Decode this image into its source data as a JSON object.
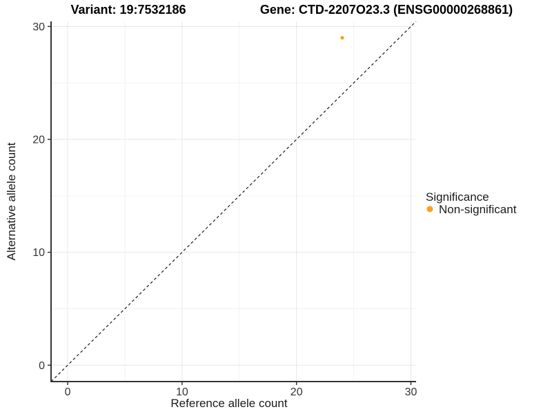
{
  "chart_data": {
    "type": "scatter",
    "title_left": "Variant: 19:7532186",
    "title_right": "Gene: CTD-2207O23.3 (ENSG00000268861)",
    "xlabel": "Reference allele count",
    "ylabel": "Alternative allele count",
    "xlim": [
      -1.45,
      30.45
    ],
    "ylim": [
      -1.45,
      30.45
    ],
    "x_ticks": [
      0,
      10,
      20,
      30
    ],
    "y_ticks": [
      0,
      10,
      20,
      30
    ],
    "x_minor_ticks": [
      5,
      15,
      25
    ],
    "y_minor_ticks": [
      5,
      15,
      25
    ],
    "grid": true,
    "identity_line": {
      "slope": 1,
      "intercept": 0,
      "style": "dashed"
    },
    "series": [
      {
        "name": "Non-significant",
        "color": "#F9A120",
        "points": [
          {
            "x": 24,
            "y": 29
          }
        ]
      }
    ],
    "legend": {
      "position": "right",
      "title": "Significance",
      "entries": [
        {
          "label": "Non-significant",
          "color": "#F9A120"
        }
      ]
    },
    "colors": {
      "background": "#FFFFFF",
      "grid_major": "#E6E6E6",
      "grid_minor": "#F2F2F2",
      "axis_line": "#333333",
      "tick_text": "#333333",
      "identity_line": "#1A1A1A"
    }
  }
}
